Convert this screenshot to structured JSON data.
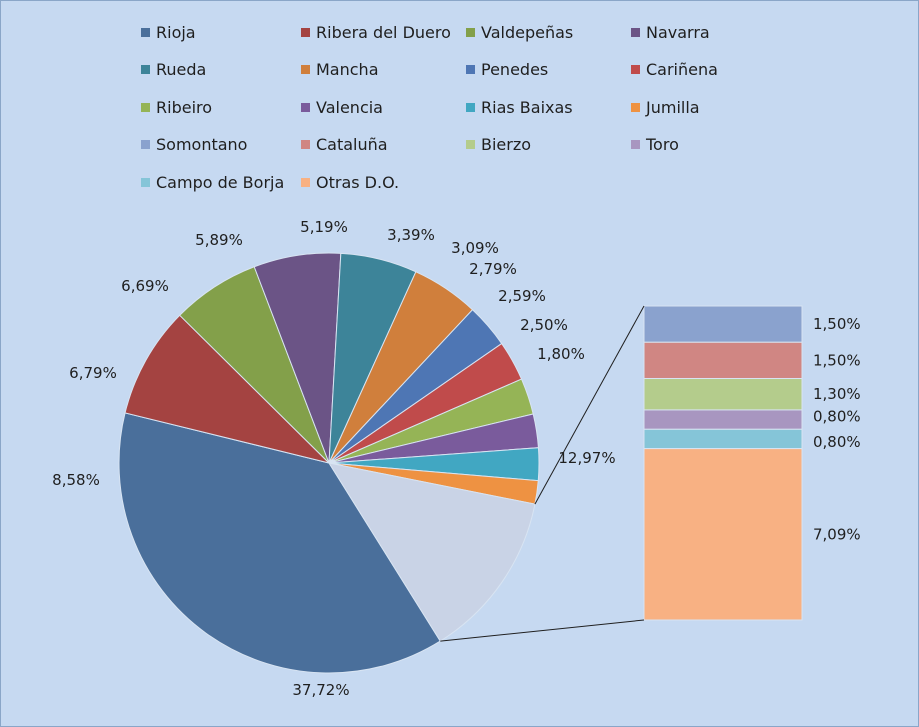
{
  "chart_data": {
    "type": "pie",
    "subtype": "pie-of-pie-bar",
    "legend_position": "top",
    "series": [
      {
        "name": "Rioja",
        "value": 37.72,
        "label": "37,72%",
        "color": "#4a6f9b"
      },
      {
        "name": "Ribera del Duero",
        "value": 8.58,
        "label": "8,58%",
        "color": "#a44341"
      },
      {
        "name": "Valdepeñas",
        "value": 6.79,
        "label": "6,79%",
        "color": "#83a04a"
      },
      {
        "name": "Navarra",
        "value": 6.69,
        "label": "6,69%",
        "color": "#6b5486"
      },
      {
        "name": "Rueda",
        "value": 5.89,
        "label": "5,89%",
        "color": "#3d8499"
      },
      {
        "name": "Mancha",
        "value": 5.19,
        "label": "5,19%",
        "color": "#d07f3c"
      },
      {
        "name": "Penedes",
        "value": 3.39,
        "label": "3,39%",
        "color": "#4e76b4"
      },
      {
        "name": "Cariñena",
        "value": 3.09,
        "label": "3,09%",
        "color": "#c04b4b"
      },
      {
        "name": "Ribeiro",
        "value": 2.79,
        "label": "2,79%",
        "color": "#95b456"
      },
      {
        "name": "Valencia",
        "value": 2.59,
        "label": "2,59%",
        "color": "#7a5b9c"
      },
      {
        "name": "Rias Baixas",
        "value": 2.5,
        "label": "2,50%",
        "color": "#41a7c2"
      },
      {
        "name": "Jumilla",
        "value": 1.8,
        "label": "1,80%",
        "color": "#ee9242"
      },
      {
        "name": "Somontano",
        "value": 1.5,
        "label": "1,50%",
        "color": "#8aa2ce"
      },
      {
        "name": "Cataluña",
        "value": 1.5,
        "label": "1,50%",
        "color": "#d08683"
      },
      {
        "name": "Bierzo",
        "value": 1.3,
        "label": "1,30%",
        "color": "#b4cc8c"
      },
      {
        "name": "Toro",
        "value": 0.8,
        "label": "0,80%",
        "color": "#a896c0"
      },
      {
        "name": "Campo de Borja",
        "value": 0.8,
        "label": "0,80%",
        "color": "#85c5d8"
      },
      {
        "name": "Otras D.O.",
        "value": 7.09,
        "label": "7,09%",
        "color": "#f8b183"
      }
    ],
    "other_slice": {
      "value": 12.97,
      "label": "12,97%",
      "color": "#c9d3e6"
    },
    "legend_labels": [
      "Rioja",
      "Ribera del Duero",
      "Valdepeñas",
      "Navarra",
      "Rueda",
      "Mancha",
      "Penedes",
      "Cariñena",
      "Ribeiro",
      " Valencia",
      "Rias Baixas",
      " Jumilla",
      " Somontano",
      "Cataluña",
      "Bierzo",
      "Toro",
      "Campo de Borja",
      "Otras D.O."
    ]
  }
}
